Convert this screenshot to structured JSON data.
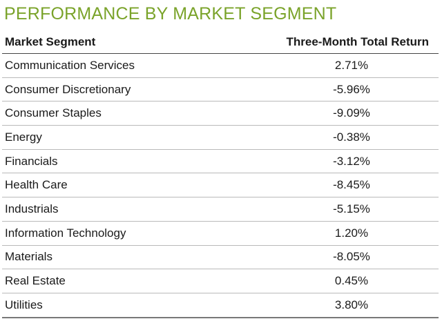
{
  "chart_data": {
    "type": "table",
    "title": "PERFORMANCE BY MARKET SEGMENT",
    "columns": [
      "Market Segment",
      "Three-Month Total Return"
    ],
    "rows": [
      {
        "segment": "Communication Services",
        "return": "2.71%",
        "value": 2.71
      },
      {
        "segment": "Consumer Discretionary",
        "return": "-5.96%",
        "value": -5.96
      },
      {
        "segment": "Consumer Staples",
        "return": "-9.09%",
        "value": -9.09
      },
      {
        "segment": "Energy",
        "return": "-0.38%",
        "value": -0.38
      },
      {
        "segment": "Financials",
        "return": "-3.12%",
        "value": -3.12
      },
      {
        "segment": "Health Care",
        "return": "-8.45%",
        "value": -8.45
      },
      {
        "segment": "Industrials",
        "return": "-5.15%",
        "value": -5.15
      },
      {
        "segment": "Information Technology",
        "return": "1.20%",
        "value": 1.2
      },
      {
        "segment": "Materials",
        "return": "-8.05%",
        "value": -8.05
      },
      {
        "segment": "Real Estate",
        "return": "0.45%",
        "value": 0.45
      },
      {
        "segment": "Utilities",
        "return": "3.80%",
        "value": 3.8
      }
    ]
  },
  "colors": {
    "title": "#7aa32a",
    "text": "#1a1a1a",
    "row_rule": "#b9b9b9"
  }
}
